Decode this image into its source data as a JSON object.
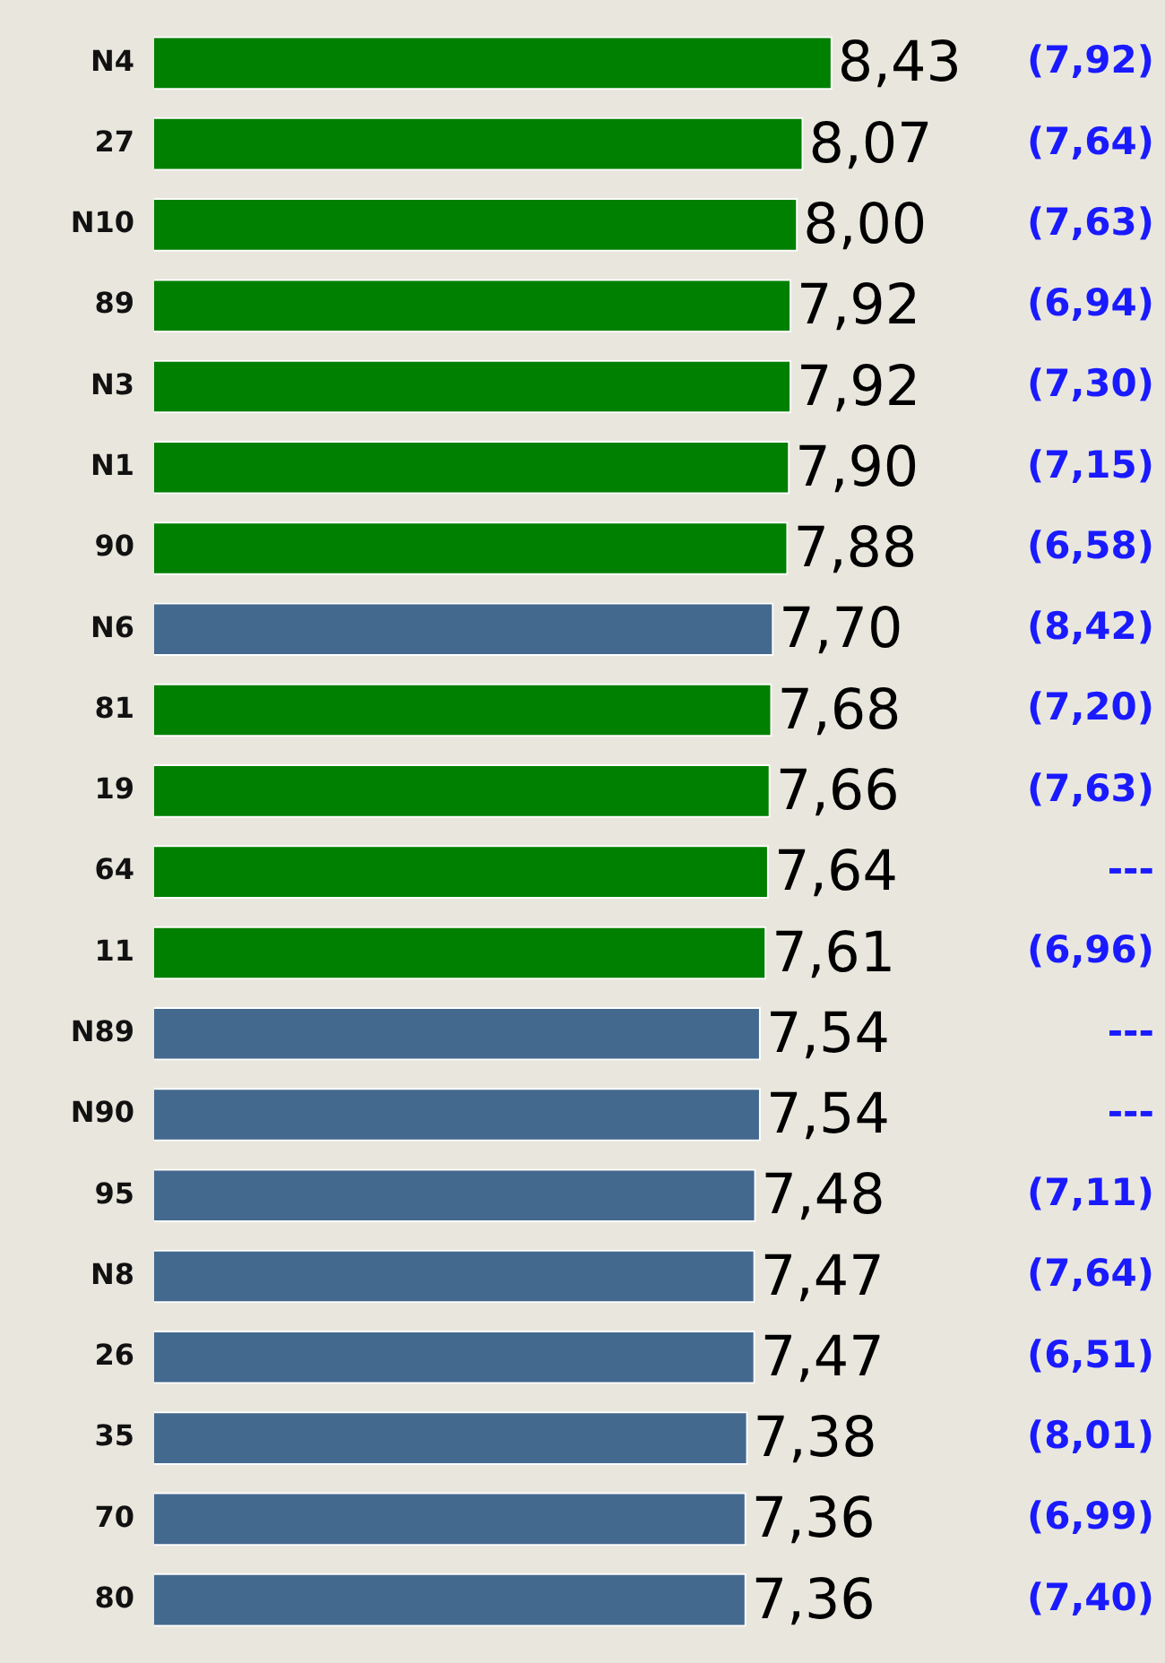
{
  "chart_data": {
    "type": "bar",
    "orientation": "horizontal",
    "categories": [
      "N4",
      "27",
      "N10",
      "89",
      "N3",
      "N1",
      "90",
      "N6",
      "81",
      "19",
      "64",
      "11",
      "N89",
      "N90",
      "95",
      "N8",
      "26",
      "35",
      "70",
      "80"
    ],
    "values": [
      8.43,
      8.07,
      8.0,
      7.92,
      7.92,
      7.9,
      7.88,
      7.7,
      7.68,
      7.66,
      7.64,
      7.61,
      7.54,
      7.54,
      7.48,
      7.47,
      7.47,
      7.38,
      7.36,
      7.36
    ],
    "value_labels": [
      "8,43",
      "8,07",
      "8,00",
      "7,92",
      "7,92",
      "7,90",
      "7,88",
      "7,70",
      "7,68",
      "7,66",
      "7,64",
      "7,61",
      "7,54",
      "7,54",
      "7,48",
      "7,47",
      "7,47",
      "7,38",
      "7,36",
      "7,36"
    ],
    "colors": [
      "#008000",
      "#008000",
      "#008000",
      "#008000",
      "#008000",
      "#008000",
      "#008000",
      "#44698f",
      "#008000",
      "#008000",
      "#008000",
      "#008000",
      "#44698f",
      "#44698f",
      "#44698f",
      "#44698f",
      "#44698f",
      "#44698f",
      "#44698f",
      "#44698f"
    ],
    "tick_labels": "y",
    "legend": false,
    "annotations": [
      "(7,92)",
      "(7,64)",
      "(7,63)",
      "(6,94)",
      "(7,30)",
      "(7,15)",
      "(6,58)",
      "(8,42)",
      "(7,20)",
      "(7,63)",
      "---",
      "(6,96)",
      "---",
      "---",
      "(7,11)",
      "(7,64)",
      "(6,51)",
      "(8,01)",
      "(6,99)",
      "(7,40)"
    ]
  }
}
